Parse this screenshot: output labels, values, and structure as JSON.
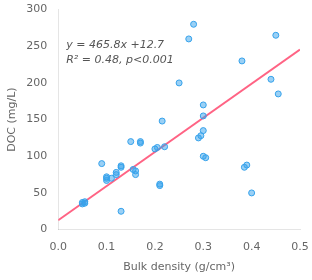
{
  "chart_data": {
    "type": "scatter",
    "xlabel": "Bulk density (g/cm³)",
    "ylabel": "DOC (mg/L)",
    "xlim": [
      0.0,
      0.5
    ],
    "ylim": [
      0,
      300
    ],
    "xticks": [
      {
        "value": 0.0,
        "label": "0.0"
      },
      {
        "value": 0.1,
        "label": "0.1"
      },
      {
        "value": 0.2,
        "label": "0.2"
      },
      {
        "value": 0.3,
        "label": "0.3"
      },
      {
        "value": 0.4,
        "label": "0.4"
      },
      {
        "value": 0.5,
        "label": "0.5"
      }
    ],
    "yticks": [
      0,
      50,
      100,
      150,
      200,
      250,
      300
    ],
    "grid": false,
    "annotations": [
      "y = 465.8x +12.7",
      "R² = 0.48, p<0.001"
    ],
    "series": [
      {
        "type": "scatter",
        "x": [
          0.05,
          0.05,
          0.055,
          0.055,
          0.09,
          0.1,
          0.1,
          0.1,
          0.11,
          0.12,
          0.12,
          0.13,
          0.13,
          0.13,
          0.15,
          0.155,
          0.16,
          0.16,
          0.17,
          0.17,
          0.2,
          0.205,
          0.21,
          0.21,
          0.215,
          0.22,
          0.25,
          0.27,
          0.28,
          0.29,
          0.295,
          0.3,
          0.3,
          0.3,
          0.305,
          0.3,
          0.38,
          0.385,
          0.39,
          0.4,
          0.44,
          0.45,
          0.455
        ],
        "values": [
          35,
          37,
          36,
          38,
          90,
          67,
          70,
          72,
          70,
          75,
          78,
          25,
          85,
          87,
          120,
          82,
          75,
          80,
          120,
          118,
          110,
          112,
          60,
          62,
          148,
          113,
          200,
          260,
          280,
          125,
          128,
          135,
          155,
          100,
          98,
          170,
          230,
          85,
          88,
          50,
          205,
          265,
          185
        ]
      },
      {
        "type": "line",
        "x": [
          0.0,
          0.5
        ],
        "values": [
          12.7,
          245.6
        ]
      }
    ]
  }
}
